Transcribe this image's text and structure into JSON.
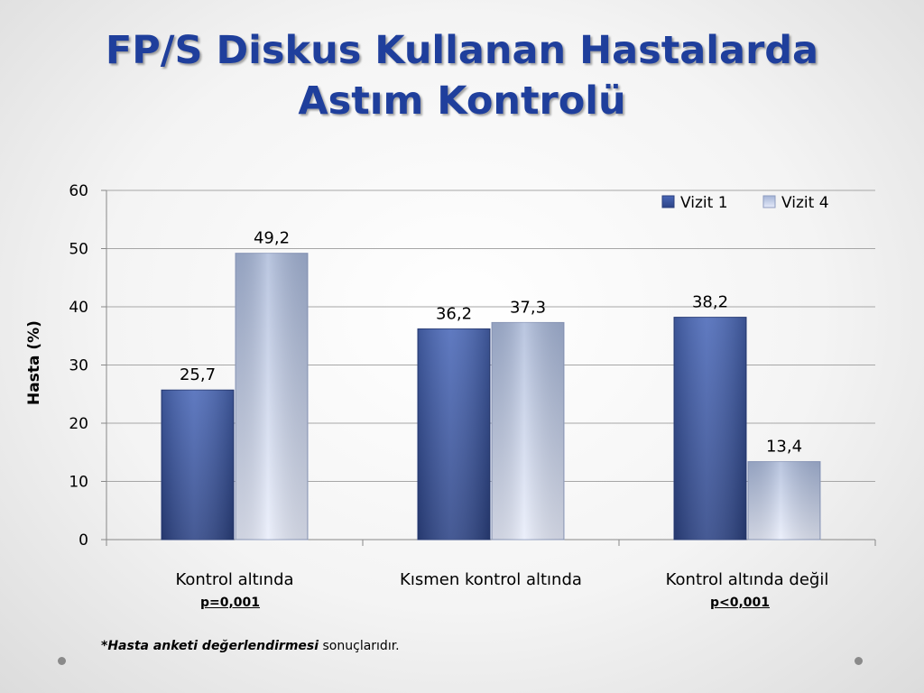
{
  "slide": {
    "title_line1": "FP/S Diskus Kullanan Hastalarda",
    "title_line2": "Astım Kontrolü"
  },
  "chart_data": {
    "type": "bar",
    "categories": [
      "Kontrol altında",
      "Kısmen kontrol altında",
      "Kontrol altında değil"
    ],
    "series": [
      {
        "name": "Vizit 1",
        "values": [
          25.7,
          36.2,
          38.2
        ],
        "labels": [
          "25,7",
          "36,2",
          "38,2"
        ],
        "color": "#3b59a8"
      },
      {
        "name": "Vizit 4",
        "values": [
          49.2,
          37.3,
          13.4
        ],
        "labels": [
          "49,2",
          "37,3",
          "13,4"
        ],
        "color": "#c9d3ef"
      }
    ],
    "ylabel": "Hasta (%)",
    "ylim": [
      0,
      60
    ],
    "yticks": [
      0,
      10,
      20,
      30,
      40,
      50,
      60
    ],
    "grid": true,
    "legend": "top-right"
  },
  "significance": {
    "group1": "p=0,001",
    "group3": "p<0,001"
  },
  "footnote": {
    "bold": "*Hasta anketi değerlendirmesi",
    "rest": " sonuçlarıdır."
  }
}
